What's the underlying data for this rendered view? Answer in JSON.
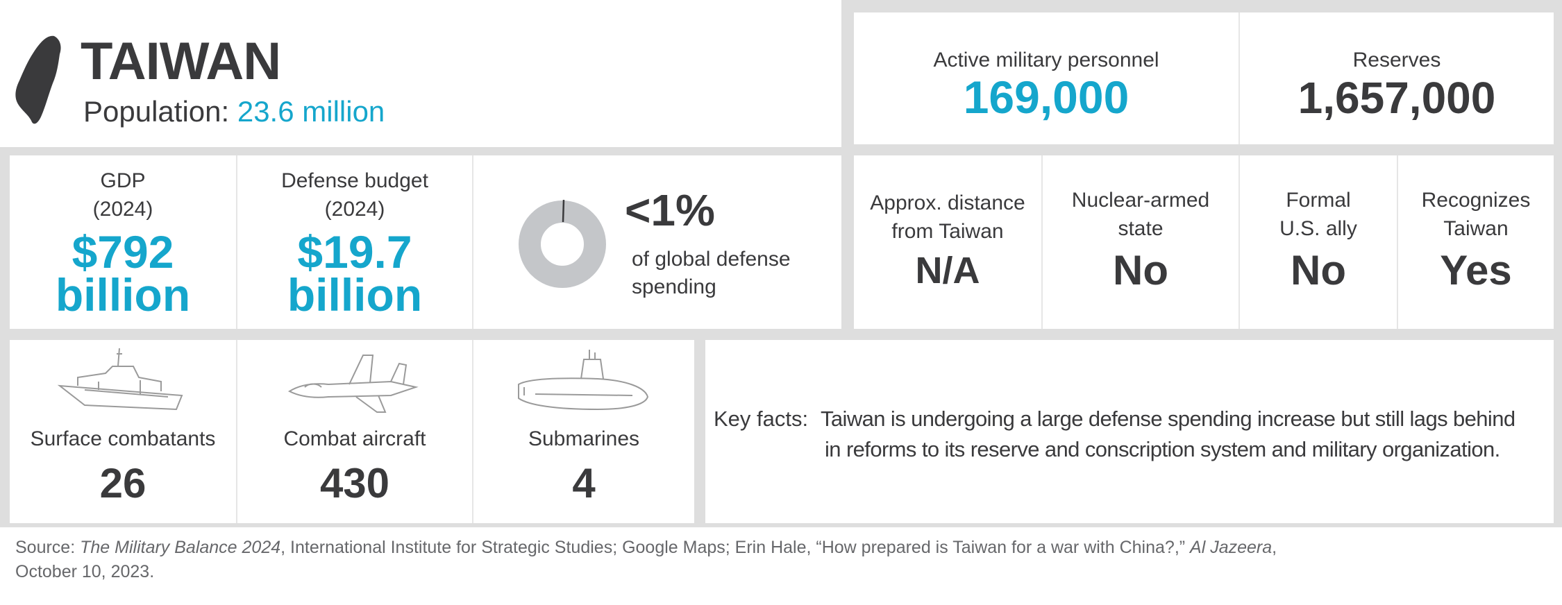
{
  "country": {
    "name": "TAIWAN",
    "population_label": "Population:",
    "population_value": "23.6 million"
  },
  "personnel": {
    "active_label": "Active military personnel",
    "active_value": "169,000",
    "reserves_label": "Reserves",
    "reserves_value": "1,657,000"
  },
  "economy": {
    "gdp_label": "GDP",
    "gdp_year": "(2024)",
    "gdp_value_line1": "$792",
    "gdp_value_line2": "billion",
    "defense_label": "Defense budget",
    "defense_year": "(2024)",
    "defense_value_line1": "$19.7",
    "defense_value_line2": "billion",
    "global_share_value": "<1%",
    "global_share_label_line1": "of global defense",
    "global_share_label_line2": "spending",
    "global_share_fraction": 0.005
  },
  "relations": {
    "distance_label_line1": "Approx. distance",
    "distance_label_line2": "from Taiwan",
    "distance_value": "N/A",
    "nuclear_label_line1": "Nuclear-armed",
    "nuclear_label_line2": "state",
    "nuclear_value": "No",
    "ally_label_line1": "Formal",
    "ally_label_line2": "U.S. ally",
    "ally_value": "No",
    "recognizes_label_line1": "Recognizes",
    "recognizes_label_line2": "Taiwan",
    "recognizes_value": "Yes"
  },
  "forces": [
    {
      "label": "Surface combatants",
      "value": "26",
      "icon": "warship-icon"
    },
    {
      "label": "Combat aircraft",
      "value": "430",
      "icon": "fighter-jet-icon"
    },
    {
      "label": "Submarines",
      "value": "4",
      "icon": "submarine-icon"
    }
  ],
  "key_facts": {
    "label": "Key facts:",
    "line1": "Taiwan is undergoing a large defense spending increase but still lags behind",
    "line2": "in reforms to its reserve and conscription system and military organization."
  },
  "source": {
    "prefix": "Source: ",
    "title1": "The Military Balance 2024",
    "middle": ", International Institute for Strategic Studies; Google Maps; Erin Hale, “How prepared is Taiwan for a war with China?,” ",
    "title2": "Al Jazeera",
    "suffix": ",",
    "line2": "October 10, 2023."
  },
  "colors": {
    "accent_blue": "#15a6cc",
    "text_dark": "#3a3a3c",
    "frame_grey": "#dedede",
    "donut_grey": "#c4c6c9"
  }
}
